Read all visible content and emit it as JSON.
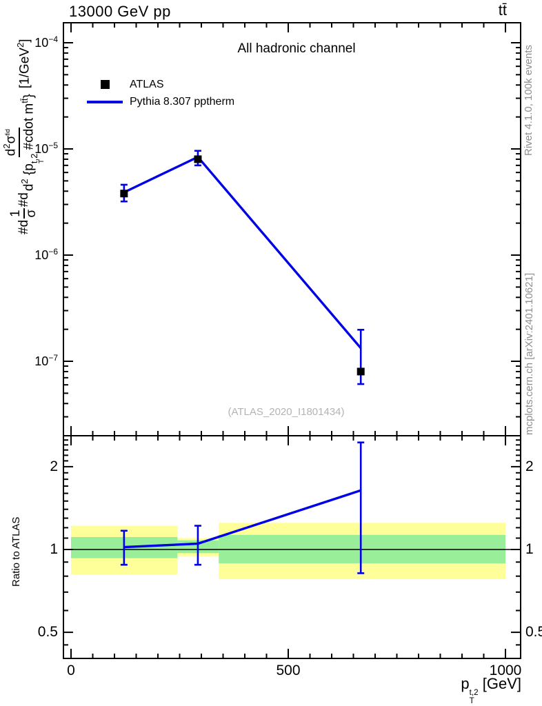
{
  "header": {
    "title": "13000 GeV pp",
    "process": "tt̄"
  },
  "right_margin": {
    "top_credit": "Rivet 4.1.0,  100k events",
    "bottom_credit": "mcplots.cern.ch [arXiv:2401.10621]"
  },
  "main_panel": {
    "annotation": "All hadronic channel",
    "watermark": "(ATLAS_2020_I1801434)",
    "legend": [
      {
        "label": "ATLAS",
        "marker": "filled-square",
        "color": "#000000"
      },
      {
        "label": "Pythia 8.307 pptherm",
        "marker": "line",
        "color": "#0000e6"
      }
    ]
  },
  "ylabel_main": {
    "plain": "#d1/σ#d d²σ^{fid}/d²{p_T^{t,2} #cdot m^{tt̄}} [1/GeV²]",
    "t1": "#d",
    "f1_num": "1",
    "f1_den": "σ",
    "t2": "#d",
    "num_d": "d",
    "num_d_exp": "2",
    "num_sigma": "σ",
    "num_sup": "fid",
    "den_d": "d",
    "den_d_exp": "2",
    "den_open": " {p",
    "den_p_sup": "t,2",
    "den_p_sub": "T",
    "den_mid": " #cdot m",
    "den_m_sup": "tt̄",
    "den_close": "}",
    "units_pre": "[1/GeV",
    "units_exp": "2",
    "units_close": "]"
  },
  "ratio_panel": {
    "ylabel": "Ratio to ATLAS"
  },
  "xaxis": {
    "tick_values": [
      0,
      500,
      1000
    ],
    "tick_labels": [
      "0",
      "500",
      "1000"
    ],
    "minor_step": 50,
    "title_p": "p",
    "title_sup": "t,2",
    "title_sub": "T",
    "title_units": " [GeV]"
  },
  "yaxis_main": {
    "decade_exponents": [
      -4,
      -5,
      -6,
      -7
    ]
  },
  "yaxis_ratio": {
    "tick_values": [
      2,
      1,
      0.5
    ],
    "tick_labels": [
      "2",
      "1",
      "0.5"
    ]
  },
  "colors": {
    "mc_line": "#0000e6",
    "data_marker": "#000000",
    "band_total": "#ffff99",
    "band_stat": "#99ef99",
    "frame": "#000000",
    "watermark": "#b3b3b3",
    "side_text": "#8f8f8f"
  },
  "chart_data": [
    {
      "panel": "main-spectrum",
      "type": "line",
      "title": "13000 GeV pp",
      "process_label": "tt̄",
      "annotation": "All hadronic channel",
      "watermark": "(ATLAS_2020_I1801434)",
      "xlabel": "p_T^{t,2} [GeV]",
      "ylabel": "#d1/σ#d d²σ^{fid}/d²{p_T^{t,2} #cdot m^{tt̄}} [1/GeV²]",
      "x_log": false,
      "y_log": true,
      "xlim": [
        -17,
        1035
      ],
      "ylim": [
        2e-08,
        0.000155
      ],
      "x_ticks": [
        0,
        500,
        1000
      ],
      "x_minor_step": 50,
      "y_tick_exponents": [
        -4,
        -5,
        -6,
        -7
      ],
      "bin_edges_gev": [
        0,
        245,
        340,
        1000
      ],
      "x": [
        122,
        292,
        667
      ],
      "legend_position": "top-left",
      "series": [
        {
          "name": "ATLAS",
          "role": "data",
          "marker": "filled-square",
          "color": "#000000",
          "y": [
            3.8e-06,
            8e-06,
            8e-08
          ]
        },
        {
          "name": "Pythia 8.307 pptherm",
          "role": "mc",
          "marker": "line",
          "color": "#0000e6",
          "y": [
            3.9e-06,
            8.4e-06,
            1.33e-07
          ],
          "y_err_lo": [
            3.2e-06,
            7e-06,
            6.1e-08
          ],
          "y_err_hi": [
            4.6e-06,
            9.6e-06,
            1.98e-07
          ]
        }
      ]
    },
    {
      "panel": "ratio",
      "type": "line",
      "ylabel": "Ratio to ATLAS",
      "y_log": true,
      "ylim": [
        0.4,
        2.59
      ],
      "y_ticks": [
        2,
        1,
        0.5
      ],
      "x": [
        122,
        292,
        667
      ],
      "ratio": [
        1.02,
        1.05,
        1.64
      ],
      "ratio_err_lo": [
        0.88,
        0.88,
        0.82
      ],
      "ratio_err_hi": [
        1.17,
        1.22,
        2.45
      ],
      "reference_line": 1.0,
      "bands": [
        {
          "x0": 0,
          "x1": 245,
          "total_lo": 0.81,
          "total_hi": 1.22,
          "stat_lo": 0.93,
          "stat_hi": 1.11
        },
        {
          "x0": 245,
          "x1": 340,
          "total_lo": 0.945,
          "total_hi": 1.1,
          "stat_lo": 0.97,
          "stat_hi": 1.08
        },
        {
          "x0": 340,
          "x1": 1000,
          "total_lo": 0.78,
          "total_hi": 1.25,
          "stat_lo": 0.89,
          "stat_hi": 1.13
        }
      ]
    }
  ]
}
